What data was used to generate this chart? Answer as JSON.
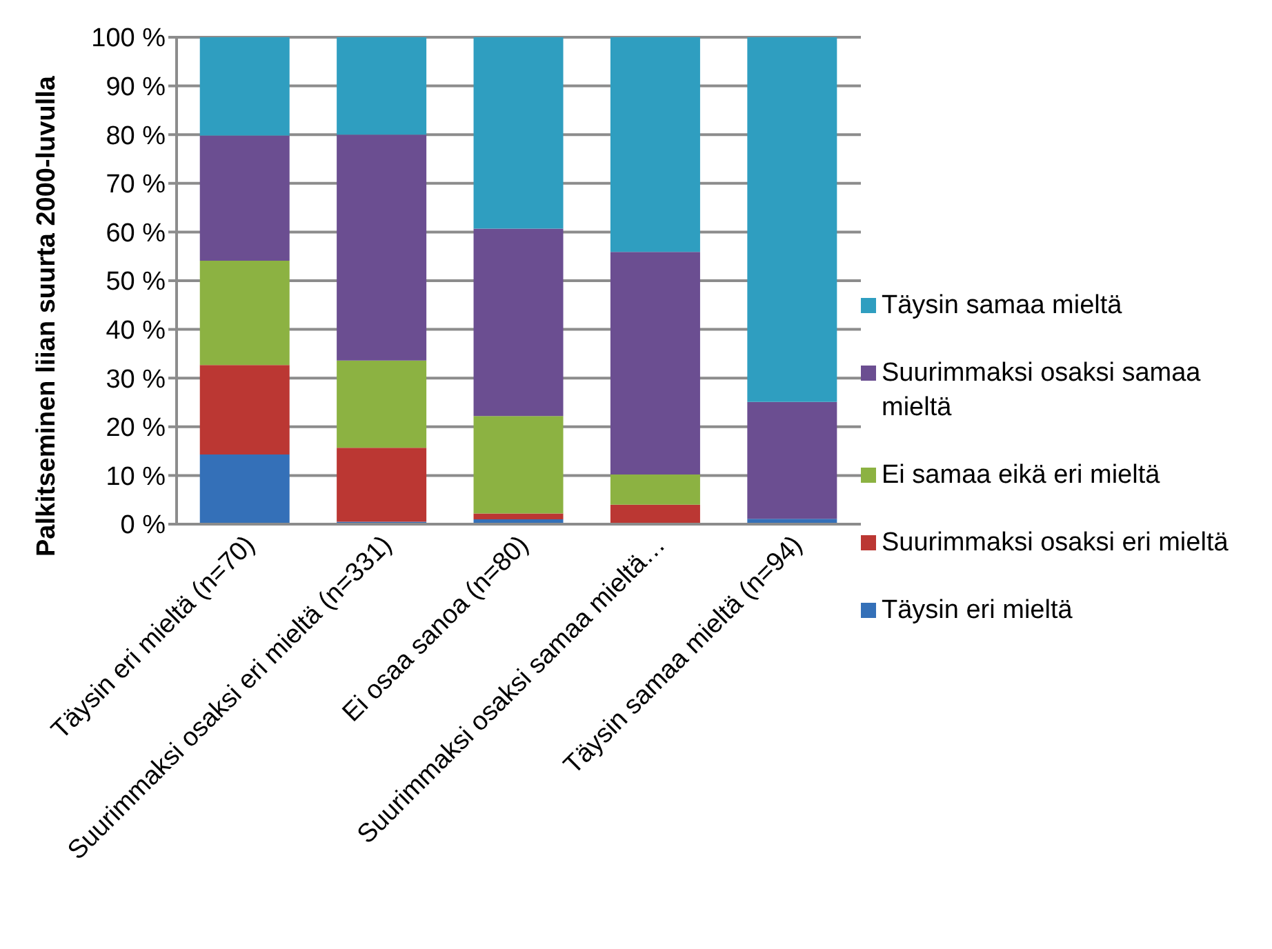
{
  "chart_data": {
    "type": "bar",
    "stacked": true,
    "ylabel": "Palkitseminen liian suurta 2000-luvulla",
    "categories": [
      "Täysin eri mieltä (n=70)",
      "Suurimmaksi osaksi eri mieltä (n=331)",
      "Ei osaa sanoa (n=80)",
      "Suurimmaksi osaksi samaa mieltä…",
      "Täysin samaa mieltä (n=94)"
    ],
    "series": [
      {
        "name": "Täysin eri mieltä",
        "color": "#3470b8",
        "values": [
          14.3,
          0.5,
          1.0,
          0.3,
          1.1
        ]
      },
      {
        "name": "Suurimmaksi osaksi eri mieltä",
        "color": "#bb3733",
        "values": [
          18.4,
          15.2,
          1.2,
          3.7,
          0
        ]
      },
      {
        "name": "Ei samaa eikä eri mieltä",
        "color": "#8cb242",
        "values": [
          21.4,
          17.9,
          20.0,
          6.2,
          0
        ]
      },
      {
        "name": "Suurimmaksi osaksi samaa mieltä",
        "color": "#6b4e91",
        "values": [
          25.7,
          46.4,
          38.5,
          45.7,
          24.0
        ]
      },
      {
        "name": "Täysin samaa mieltä",
        "color": "#2f9ec0",
        "values": [
          20.2,
          20.0,
          39.3,
          44.1,
          74.9
        ]
      }
    ],
    "ylim": [
      0,
      100
    ],
    "yticks": [
      {
        "value": 0,
        "label": "0 %"
      },
      {
        "value": 10,
        "label": "10 %"
      },
      {
        "value": 20,
        "label": "20 %"
      },
      {
        "value": 30,
        "label": "30 %"
      },
      {
        "value": 40,
        "label": "40 %"
      },
      {
        "value": 50,
        "label": "50 %"
      },
      {
        "value": 60,
        "label": "60 %"
      },
      {
        "value": 70,
        "label": "70 %"
      },
      {
        "value": 80,
        "label": "80 %"
      },
      {
        "value": 90,
        "label": "90 %"
      },
      {
        "value": 100,
        "label": "100 %"
      }
    ],
    "grid": "y",
    "legend": "right"
  }
}
